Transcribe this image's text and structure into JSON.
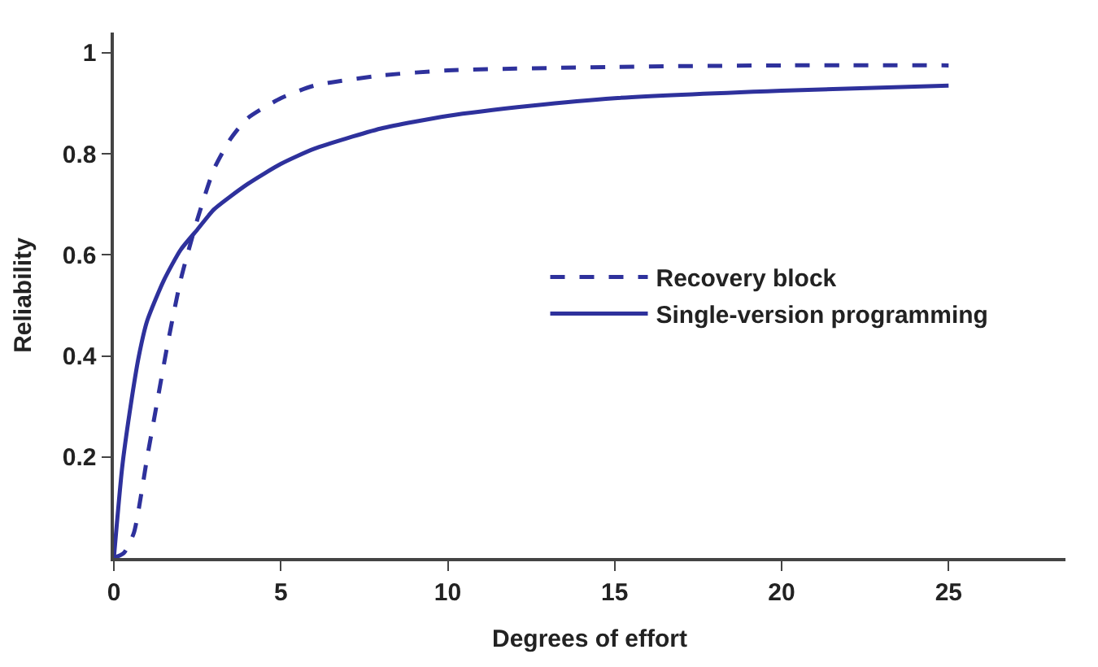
{
  "chart_data": {
    "type": "line",
    "xlabel": "Degrees of effort",
    "ylabel": "Reliability",
    "xlim": [
      0,
      28.5
    ],
    "ylim": [
      0,
      1.04
    ],
    "xticks": [
      0,
      5,
      10,
      15,
      20,
      25
    ],
    "yticks": [
      0.2,
      0.4,
      0.6,
      0.8,
      1
    ],
    "legend": "right",
    "marker": "none",
    "series": [
      {
        "name": "Recovery block",
        "color": "#2e319c",
        "line_style": "dashed",
        "x": [
          0,
          0.3,
          0.6,
          1,
          1.3,
          1.6,
          2,
          2.5,
          3,
          3.5,
          4,
          5,
          6,
          8,
          10,
          15,
          20,
          25
        ],
        "values": [
          0,
          0.01,
          0.05,
          0.2,
          0.31,
          0.42,
          0.55,
          0.67,
          0.77,
          0.83,
          0.87,
          0.91,
          0.935,
          0.955,
          0.965,
          0.972,
          0.975,
          0.975
        ]
      },
      {
        "name": "Single-version programming",
        "color": "#2e319c",
        "line_style": "solid",
        "x": [
          0,
          0.25,
          0.5,
          0.75,
          1,
          1.5,
          2,
          2.5,
          3,
          4,
          5,
          6,
          8,
          10,
          12.5,
          15,
          20,
          25
        ],
        "values": [
          0,
          0.18,
          0.3,
          0.4,
          0.47,
          0.55,
          0.61,
          0.65,
          0.69,
          0.74,
          0.78,
          0.81,
          0.85,
          0.875,
          0.895,
          0.91,
          0.925,
          0.935
        ]
      }
    ]
  }
}
